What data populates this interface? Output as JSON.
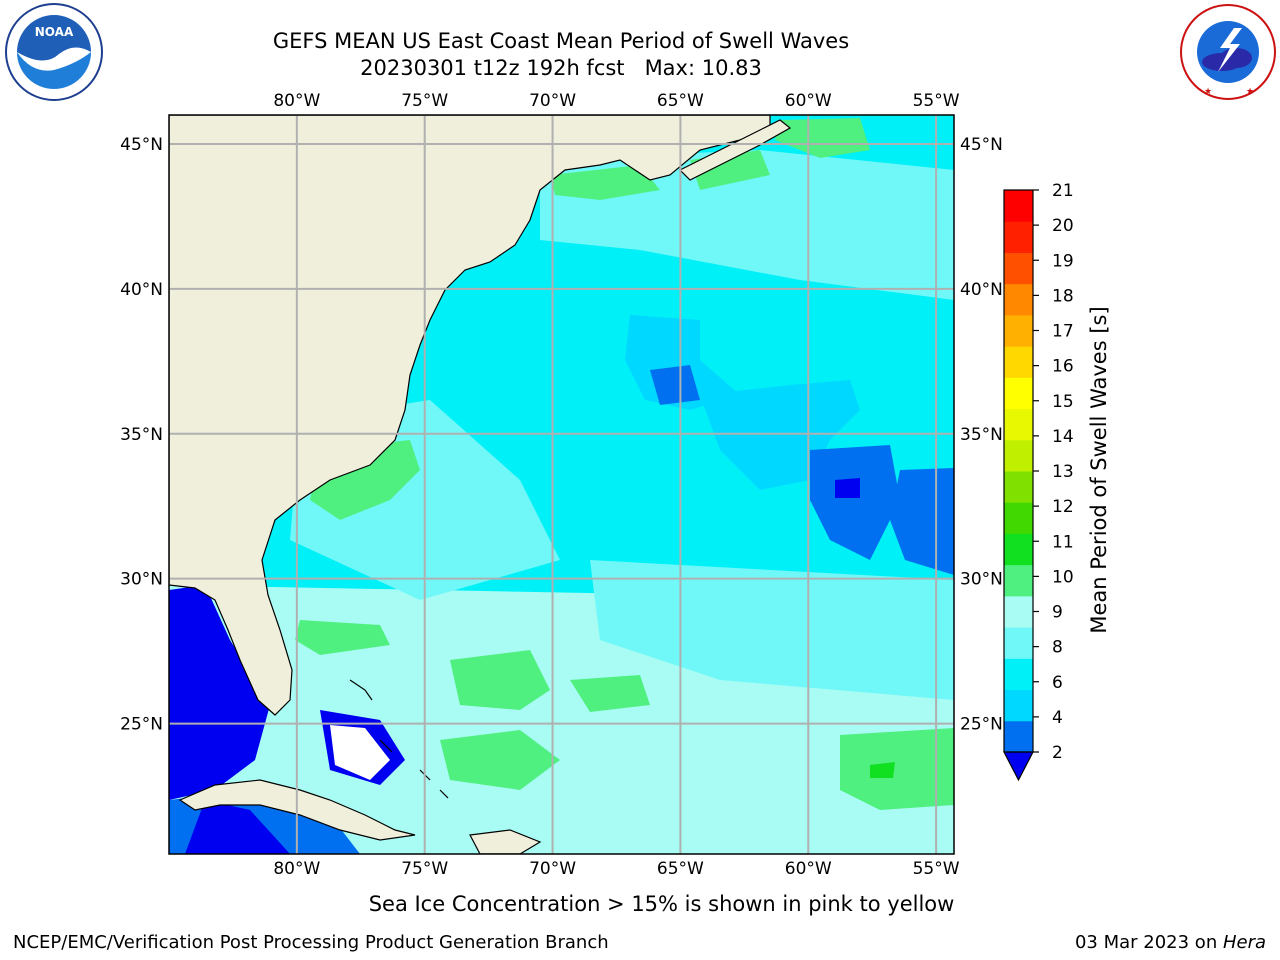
{
  "header": {
    "title_line1": "GEFS MEAN US East Coast Mean Period of Swell Waves",
    "title_line2": "20230301 t12z 192h fcst   Max: 10.83"
  },
  "logos": {
    "left": {
      "name": "NOAA",
      "ring_text": "NATIONAL OCEANIC AND ATMOSPHERIC ADMINISTRATION",
      "bottom_text": "U.S. DEPARTMENT OF COMMERCE"
    },
    "right": {
      "ring_text": "NATIONAL WEATHER SERVICE"
    }
  },
  "map": {
    "lon_labels": [
      "80°W",
      "75°W",
      "70°W",
      "65°W",
      "60°W",
      "55°W"
    ],
    "lat_labels": [
      "45°N",
      "40°N",
      "35°N",
      "30°N",
      "25°N"
    ],
    "lon_values": [
      -80,
      -75,
      -70,
      -65,
      -60,
      -55
    ],
    "lat_values": [
      45,
      40,
      35,
      30,
      25
    ],
    "extent": {
      "lon_min": -85,
      "lon_max": -54.3,
      "lat_min": 20.5,
      "lat_max": 46
    }
  },
  "colorbar": {
    "label": "Mean Period of Swell Waves [s]",
    "ticks": [
      "2",
      "4",
      "6",
      "8",
      "9",
      "10",
      "11",
      "12",
      "13",
      "14",
      "15",
      "16",
      "17",
      "18",
      "19",
      "20",
      "21"
    ],
    "colors": [
      "#0070f0",
      "#00d8ff",
      "#00f0f8",
      "#70f8f8",
      "#a8fcf4",
      "#50f080",
      "#10e020",
      "#40d800",
      "#80e000",
      "#c0f000",
      "#e8f800",
      "#ffff00",
      "#ffd800",
      "#ffb000",
      "#ff8800",
      "#ff5000",
      "#ff2000",
      "#ff0000"
    ],
    "under_color": "#0000f0"
  },
  "notes": {
    "sea_ice": "Sea Ice Concentration > 15% is shown in pink to yellow"
  },
  "footer": {
    "left": "NCEP/EMC/Verification Post Processing Product Generation Branch",
    "right_prefix": "03 Mar 2023 on ",
    "right_host": "Hera"
  }
}
